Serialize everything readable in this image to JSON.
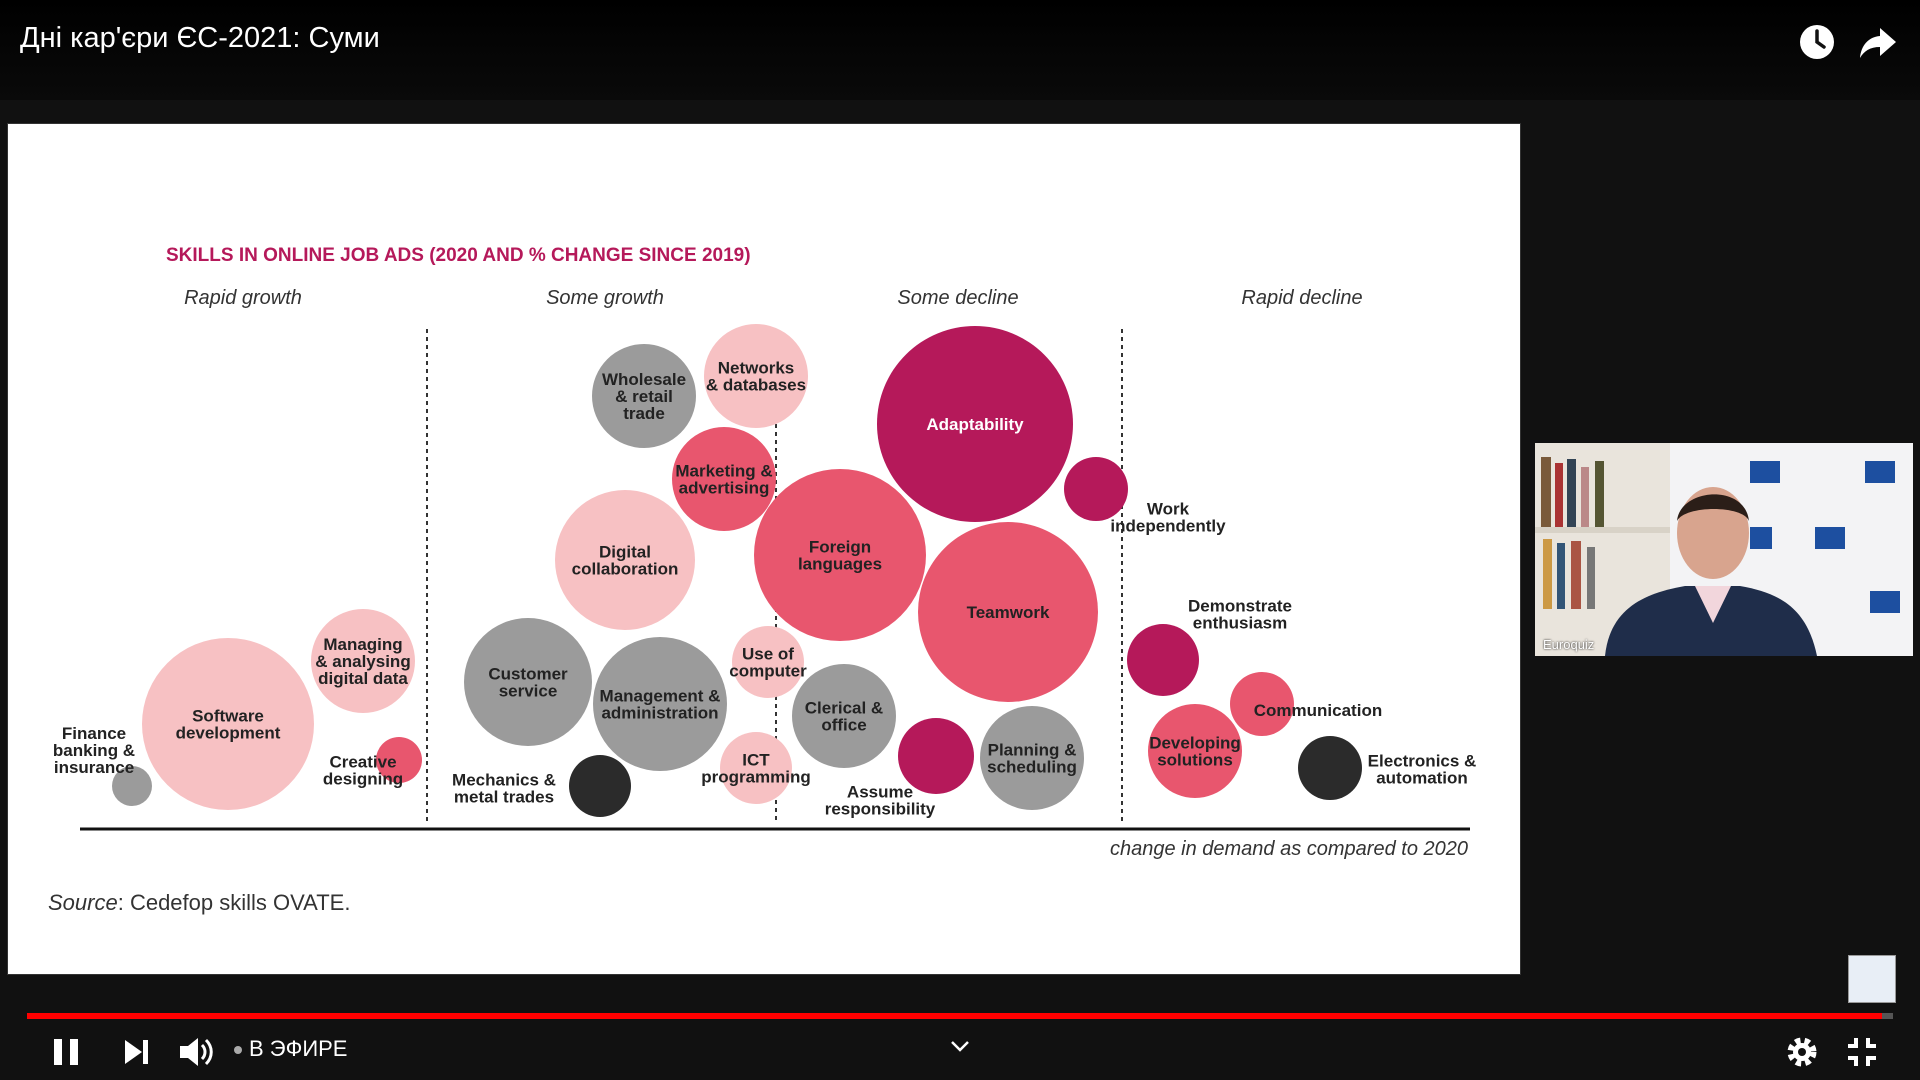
{
  "player": {
    "title": "Дні кар'єри ЄС-2021: Суми",
    "live_label": "В ЭФИРЕ",
    "progress_fraction": 0.994,
    "progress_color": "#ff0000"
  },
  "slide": {
    "title": "SKILLS IN ONLINE JOB ADS (2020 AND % CHANGE  SINCE 2019)",
    "source_label": "Source",
    "source_text": ": Cedefop skills OVATE.",
    "axis_label": "change in demand as compared to 2020",
    "colors": {
      "title": "#b5195a",
      "dark_magenta": "#b5195a",
      "coral": "#e8566e",
      "light_pink": "#f7c1c3",
      "grey": "#9b9b9b",
      "black": "#2b2b2b"
    }
  },
  "chart_data": {
    "type": "bubble",
    "categories": [
      "Rapid growth",
      "Some growth",
      "Some decline",
      "Rapid decline"
    ],
    "bubbles": [
      {
        "label": "Finance banking & insurance",
        "category": "Rapid growth",
        "color": "grey"
      },
      {
        "label": "Software development",
        "category": "Rapid growth",
        "color": "light_pink"
      },
      {
        "label": "Managing & analysing digital data",
        "category": "Rapid growth",
        "color": "light_pink"
      },
      {
        "label": "Creative designing",
        "category": "Rapid growth",
        "color": "coral"
      },
      {
        "label": "Wholesale & retail trade",
        "category": "Some growth",
        "color": "grey"
      },
      {
        "label": "Networks & databases",
        "category": "Some growth",
        "color": "light_pink"
      },
      {
        "label": "Marketing & advertising",
        "category": "Some growth",
        "color": "coral"
      },
      {
        "label": "Digital collaboration",
        "category": "Some growth",
        "color": "light_pink"
      },
      {
        "label": "Customer service",
        "category": "Some growth",
        "color": "grey"
      },
      {
        "label": "Management & administration",
        "category": "Some growth",
        "color": "grey"
      },
      {
        "label": "Use of computer",
        "category": "Some growth",
        "color": "light_pink"
      },
      {
        "label": "Mechanics & metal trades",
        "category": "Some growth",
        "color": "black"
      },
      {
        "label": "ICT programming",
        "category": "Some growth",
        "color": "light_pink"
      },
      {
        "label": "Foreign languages",
        "category": "Some decline",
        "color": "coral"
      },
      {
        "label": "Adaptability",
        "category": "Some decline",
        "color": "dark_magenta"
      },
      {
        "label": "Teamwork",
        "category": "Some decline",
        "color": "coral"
      },
      {
        "label": "Clerical & office",
        "category": "Some decline",
        "color": "grey"
      },
      {
        "label": "Assume responsibility",
        "category": "Some decline",
        "color": "dark_magenta"
      },
      {
        "label": "Planning & scheduling",
        "category": "Some decline",
        "color": "grey"
      },
      {
        "label": "Work independently",
        "category": "Rapid decline",
        "color": "dark_magenta"
      },
      {
        "label": "Demonstrate enthusiasm",
        "category": "Rapid decline",
        "color": "dark_magenta"
      },
      {
        "label": "Communication",
        "category": "Rapid decline",
        "color": "coral"
      },
      {
        "label": "Developing solutions",
        "category": "Rapid decline",
        "color": "coral"
      },
      {
        "label": "Electronics & automation",
        "category": "Rapid decline",
        "color": "black"
      }
    ]
  },
  "webcam": {
    "label": "Euroquiz"
  }
}
